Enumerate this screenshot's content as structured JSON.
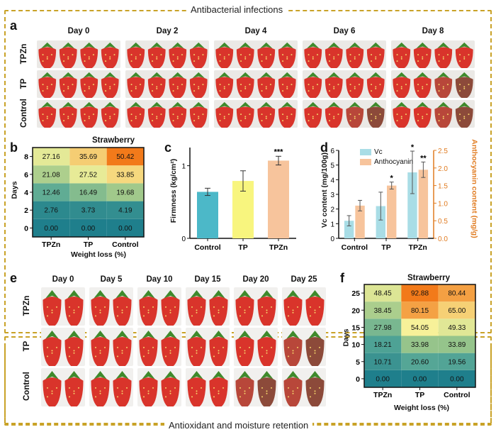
{
  "section_top_title": "Antibacterial infections",
  "section_bottom_title": "Antioxidant and moisture retention",
  "panel_labels": {
    "a": "a",
    "b": "b",
    "c": "c",
    "d": "d",
    "e": "e",
    "f": "f"
  },
  "panel_a": {
    "days": [
      "Day 0",
      "Day 2",
      "Day 4",
      "Day 6",
      "Day 8"
    ],
    "rows": [
      "TPZn",
      "TP",
      "Control"
    ]
  },
  "panel_e": {
    "days": [
      "Day 0",
      "Day 5",
      "Day 10",
      "Day 15",
      "Day 20",
      "Day 25"
    ],
    "rows": [
      "TPZn",
      "TP",
      "Control"
    ]
  },
  "colors": {
    "heat_low": "#1f7f8c",
    "heat_mid": "#9cc78a",
    "heat_yellow": "#f7f29a",
    "heat_high": "#f27a1a",
    "bar_control": "#4cb8c8",
    "bar_tp": "#f8f57e",
    "bar_tpzn": "#f7c49c",
    "vc": "#a9dde6",
    "anthocyanin": "#f7c49c",
    "accent_orange": "#e07b20",
    "frame": "#c9a227"
  },
  "chart_data": [
    {
      "id": "b",
      "type": "heatmap",
      "title": "Strawberry",
      "xlabel": "Weight loss (%)",
      "ylabel": "Days",
      "x_categories": [
        "TPZn",
        "TP",
        "Control"
      ],
      "y_categories": [
        "0",
        "2",
        "4",
        "6",
        "8"
      ],
      "values": [
        [
          0.0,
          0.0,
          0.0
        ],
        [
          2.76,
          3.73,
          4.19
        ],
        [
          12.46,
          16.49,
          19.68
        ],
        [
          21.08,
          27.52,
          33.85
        ],
        [
          27.16,
          35.69,
          50.42
        ]
      ],
      "labels": [
        [
          "0.00",
          "0.00",
          "0.00"
        ],
        [
          "2.76",
          "3.73",
          "4.19"
        ],
        [
          "12.46",
          "16.49",
          "19.68"
        ],
        [
          "21.08",
          "27.52",
          "33.85"
        ],
        [
          "27.16",
          "35.69",
          "50.42"
        ]
      ]
    },
    {
      "id": "c",
      "type": "bar",
      "title": "",
      "xlabel": "",
      "ylabel": "Firmness (kg/cm²)",
      "categories": [
        "Control",
        "TP",
        "TPZn"
      ],
      "values": [
        0.64,
        0.79,
        1.07
      ],
      "errors": [
        0.05,
        0.14,
        0.06
      ],
      "significance": [
        "",
        "",
        "***"
      ],
      "ylim": [
        0,
        1.25
      ],
      "yticks": [
        "0",
        "1"
      ]
    },
    {
      "id": "d",
      "type": "bar",
      "title": "",
      "categories": [
        "Control",
        "TP",
        "TPZn"
      ],
      "ylabel": "Vc content (mg/100g)",
      "ylabel_right": "Anthocyanin content (mg/g)",
      "ylim": [
        0,
        6
      ],
      "ylim_right": [
        0,
        2.5
      ],
      "yticks": [
        "0",
        "1",
        "2",
        "3",
        "4",
        "5",
        "6"
      ],
      "yticks_right": [
        "0.0",
        "0.5",
        "1.0",
        "1.5",
        "2.0",
        "2.5"
      ],
      "series": [
        {
          "name": "Vc",
          "axis": "left",
          "values": [
            1.2,
            2.2,
            4.5
          ],
          "errors": [
            0.35,
            0.95,
            1.45
          ],
          "significance": [
            "",
            "",
            "*"
          ]
        },
        {
          "name": "Anthocyanin",
          "axis": "right",
          "values": [
            0.93,
            1.5,
            1.95
          ],
          "errors": [
            0.15,
            0.1,
            0.22
          ],
          "significance": [
            "",
            "*",
            "**"
          ]
        }
      ]
    },
    {
      "id": "f",
      "type": "heatmap",
      "title": "Strawberry",
      "xlabel": "Weight loss (%)",
      "ylabel": "Days",
      "x_categories": [
        "TPZn",
        "TP",
        "Control"
      ],
      "y_categories": [
        "0",
        "5",
        "10",
        "15",
        "20",
        "25"
      ],
      "values": [
        [
          0.0,
          0.0,
          0.0
        ],
        [
          10.71,
          20.6,
          19.56
        ],
        [
          18.21,
          33.98,
          33.89
        ],
        [
          27.98,
          54.05,
          49.33
        ],
        [
          38.45,
          80.15,
          65.0
        ],
        [
          48.45,
          92.88,
          80.44
        ]
      ],
      "labels": [
        [
          "0.00",
          "0.00",
          "0.00"
        ],
        [
          "10.71",
          "20.60",
          "19.56"
        ],
        [
          "18.21",
          "33.98",
          "33.89"
        ],
        [
          "27.98",
          "54.05",
          "49.33"
        ],
        [
          "38.45",
          "80.15",
          "65.00"
        ],
        [
          "48.45",
          "92.88",
          "80.44"
        ]
      ]
    }
  ]
}
